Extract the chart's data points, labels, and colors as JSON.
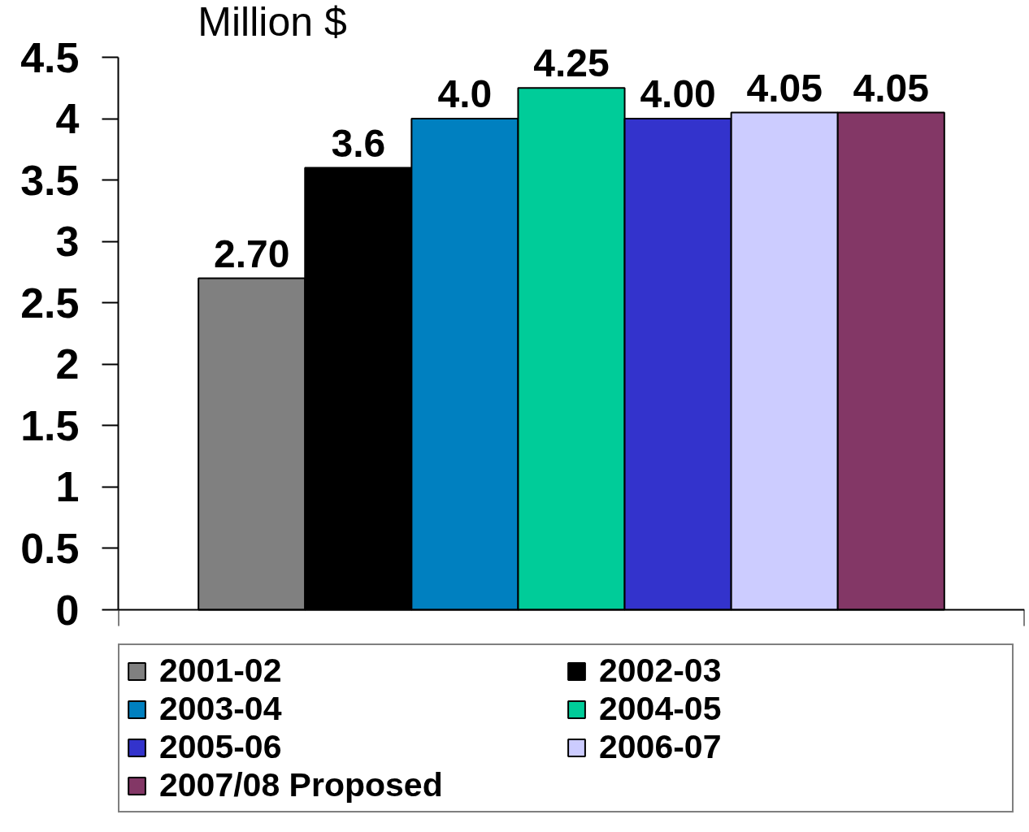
{
  "chart_data": {
    "type": "bar",
    "ylabel": "Million $",
    "categories": [
      null
    ],
    "ylim": [
      0,
      4.5
    ],
    "yticks": [
      0,
      0.5,
      1,
      1.5,
      2,
      2.5,
      3,
      3.5,
      4,
      4.5
    ],
    "legend": "bottom",
    "series": [
      {
        "name": "2001-02",
        "color": "#808080",
        "values": [
          2.7
        ],
        "value_labels": [
          "2.70"
        ]
      },
      {
        "name": "2002-03",
        "color": "#000000",
        "values": [
          3.6
        ],
        "value_labels": [
          "3.6"
        ]
      },
      {
        "name": "2003-04",
        "color": "#0080c0",
        "values": [
          4.0
        ],
        "value_labels": [
          "4.0"
        ]
      },
      {
        "name": "2004-05",
        "color": "#00cc99",
        "values": [
          4.25
        ],
        "value_labels": [
          "4.25"
        ]
      },
      {
        "name": "2005-06",
        "color": "#3333cc",
        "values": [
          4.0
        ],
        "value_labels": [
          "4.00"
        ]
      },
      {
        "name": "2006-07",
        "color": "#ccccff",
        "values": [
          4.05
        ],
        "value_labels": [
          "4.05"
        ]
      },
      {
        "name": "2007/08 Proposed",
        "color": "#833766",
        "values": [
          4.05
        ],
        "value_labels": [
          "4.05"
        ]
      }
    ]
  }
}
